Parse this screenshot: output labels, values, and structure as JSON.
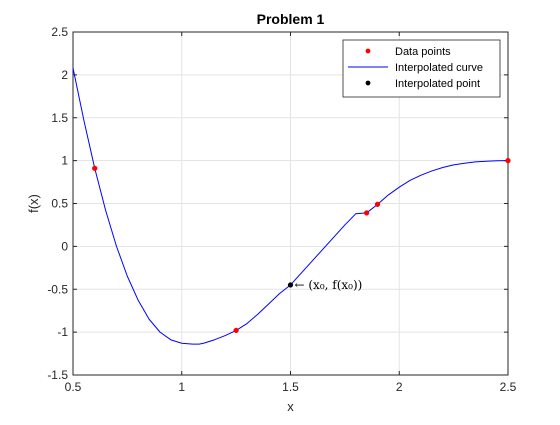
{
  "chart_data": {
    "type": "line",
    "title": "Problem 1",
    "xlabel": "x",
    "ylabel": "f(x)",
    "xlim": [
      0.5,
      2.5
    ],
    "ylim": [
      -1.5,
      2.5
    ],
    "xticks": [
      0.5,
      1,
      1.5,
      2,
      2.5
    ],
    "xtick_labels": [
      "0.5",
      "1",
      "1.5",
      "2",
      "2.5"
    ],
    "yticks": [
      -1.5,
      -1,
      -0.5,
      0,
      0.5,
      1,
      1.5,
      2,
      2.5
    ],
    "ytick_labels": [
      "-1.5",
      "-1",
      "-0.5",
      "0",
      "0.5",
      "1",
      "1.5",
      "2",
      "2.5"
    ],
    "grid": true,
    "legend_position": "top-right",
    "series": [
      {
        "name": "Data points",
        "kind": "points",
        "color": "#ff0000",
        "x": [
          0.6,
          1.25,
          1.85,
          1.9,
          2.5
        ],
        "y": [
          0.91,
          -0.98,
          0.39,
          0.49,
          1.0
        ]
      },
      {
        "name": "Interpolated curve",
        "kind": "line",
        "color": "#0000ff",
        "x": [
          0.5,
          0.55,
          0.6,
          0.65,
          0.7,
          0.75,
          0.8,
          0.85,
          0.9,
          0.95,
          1.0,
          1.05,
          1.08,
          1.1,
          1.15,
          1.2,
          1.25,
          1.3,
          1.35,
          1.4,
          1.45,
          1.5,
          1.55,
          1.6,
          1.65,
          1.7,
          1.75,
          1.8,
          1.85,
          1.9,
          1.95,
          2.0,
          2.05,
          2.1,
          2.15,
          2.2,
          2.25,
          2.3,
          2.35,
          2.4,
          2.45,
          2.5
        ],
        "y": [
          2.08,
          1.47,
          0.91,
          0.42,
          0.0,
          -0.35,
          -0.63,
          -0.85,
          -1.0,
          -1.09,
          -1.13,
          -1.14,
          -1.14,
          -1.13,
          -1.09,
          -1.04,
          -0.98,
          -0.9,
          -0.79,
          -0.67,
          -0.55,
          -0.45,
          -0.31,
          -0.17,
          -0.03,
          0.11,
          0.25,
          0.38,
          0.39,
          0.49,
          0.6,
          0.69,
          0.77,
          0.83,
          0.88,
          0.92,
          0.95,
          0.97,
          0.985,
          0.993,
          0.998,
          1.0
        ]
      },
      {
        "name": "Interpolated point",
        "kind": "points",
        "color": "#000000",
        "x": [
          1.5
        ],
        "y": [
          -0.45
        ]
      }
    ],
    "annotations": [
      {
        "text": "← (x₀, f(x₀))",
        "x": 1.5,
        "y": -0.45
      }
    ]
  }
}
